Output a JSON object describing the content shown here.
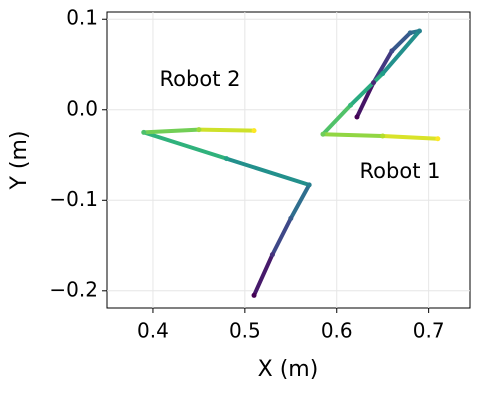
{
  "chart_data": {
    "type": "line",
    "xlabel": "X (m)",
    "ylabel": "Y (m)",
    "xlim": [
      0.35,
      0.745
    ],
    "ylim": [
      -0.219,
      0.108
    ],
    "xticks": [
      0.4,
      0.5,
      0.6,
      0.7
    ],
    "yticks": [
      0.1,
      {
        "value": 0,
        "label": "0.0"
      },
      {
        "value": -0.1,
        "label": "−0.1"
      },
      {
        "value": -0.2,
        "label": "−0.2"
      }
    ],
    "grid": true,
    "colormap": "viridis",
    "annotations": [
      "Robot 2",
      "Robot 1"
    ],
    "series": [
      {
        "name": "Robot 2",
        "x": [
          0.51,
          0.53,
          0.55,
          0.57,
          0.48,
          0.39,
          0.45,
          0.51
        ],
        "values": [
          -0.205,
          -0.16,
          -0.12,
          -0.083,
          -0.054,
          -0.025,
          -0.022,
          -0.023
        ]
      },
      {
        "name": "Robot 1",
        "x": [
          0.622,
          0.64,
          0.66,
          0.68,
          0.69,
          0.65,
          0.615,
          0.585,
          0.65,
          0.71
        ],
        "values": [
          -0.008,
          0.03,
          0.065,
          0.085,
          0.087,
          0.04,
          0.005,
          -0.027,
          -0.029,
          -0.032
        ]
      }
    ]
  }
}
